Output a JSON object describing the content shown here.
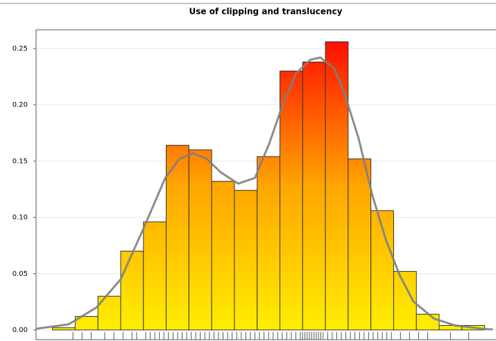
{
  "chart_data": {
    "type": "histogram",
    "title": "Use of clipping and translucency",
    "bins": [
      -4.75,
      -4.25,
      -3.75,
      -3.25,
      -2.75,
      -2.25,
      -1.75,
      -1.25,
      -0.75,
      -0.25,
      0.25,
      0.75,
      1.25,
      1.75,
      2.25,
      2.75,
      3.25,
      3.75,
      4.25,
      4.75
    ],
    "values": [
      0.002,
      0.012,
      0.03,
      0.07,
      0.096,
      0.164,
      0.16,
      0.132,
      0.124,
      0.154,
      0.23,
      0.238,
      0.256,
      0.152,
      0.106,
      0.052,
      0.014,
      0.004,
      0.004
    ],
    "gradient": [
      "#ffee00",
      "#ffa500",
      "#ff1000"
    ],
    "bar_edge_color": "#333333",
    "density": {
      "color": "#808080",
      "x": [
        -5.11,
        -4.39,
        -3.78,
        -3.25,
        -2.75,
        -2.27,
        -1.96,
        -1.66,
        -1.36,
        -1.05,
        -0.67,
        -0.3,
        0.01,
        0.31,
        0.61,
        0.92,
        1.14,
        1.45,
        1.67,
        1.98,
        2.28,
        2.58,
        2.89,
        3.19,
        3.64,
        4.1,
        4.7,
        4.93
      ],
      "values": [
        0.001,
        0.005,
        0.02,
        0.045,
        0.09,
        0.135,
        0.152,
        0.157,
        0.152,
        0.14,
        0.13,
        0.135,
        0.165,
        0.2,
        0.228,
        0.24,
        0.242,
        0.232,
        0.21,
        0.17,
        0.12,
        0.08,
        0.048,
        0.025,
        0.01,
        0.004,
        0.001,
        0.0005
      ]
    },
    "rug": [
      -4.3,
      -4.1,
      -3.9,
      -3.6,
      -3.4,
      -3.2,
      -3.0,
      -2.9,
      -2.7,
      -2.6,
      -2.5,
      -2.4,
      -2.3,
      -2.2,
      -2.1,
      -2.0,
      -1.9,
      -1.8,
      -1.7,
      -1.6,
      -1.5,
      -1.4,
      -1.3,
      -1.2,
      -1.1,
      -1.0,
      -0.9,
      -0.8,
      -0.7,
      -0.6,
      -0.5,
      -0.4,
      -0.3,
      -0.2,
      -0.1,
      0.0,
      0.1,
      0.2,
      0.3,
      0.4,
      0.5,
      0.6,
      0.7,
      0.75,
      0.8,
      0.85,
      0.9,
      0.95,
      1.0,
      1.05,
      1.1,
      1.15,
      1.2,
      1.3,
      1.4,
      1.5,
      1.6,
      1.7,
      1.8,
      1.9,
      2.0,
      2.1,
      2.2,
      2.3,
      2.4,
      2.5,
      2.6,
      2.7,
      2.9,
      3.1,
      3.3,
      3.5,
      4.0,
      4.4
    ],
    "rug_color": "#555555",
    "xlim": [
      -5.11,
      5.0
    ],
    "ylim": [
      -0.0086,
      0.2666
    ],
    "yticks": [
      {
        "value": 0,
        "label": "0.00"
      },
      {
        "value": 0.05,
        "label": "0.05"
      },
      {
        "value": 0.1,
        "label": "0.10"
      },
      {
        "value": 0.15,
        "label": "0.15"
      },
      {
        "value": 0.2,
        "label": "0.20"
      },
      {
        "value": 0.25,
        "label": "0.25"
      }
    ],
    "grid": true
  }
}
